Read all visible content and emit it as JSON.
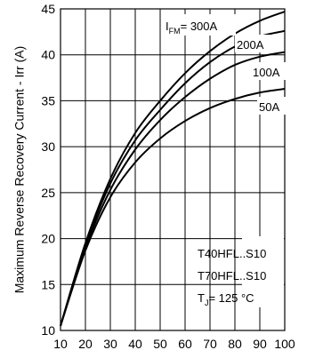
{
  "chart_data": {
    "type": "line",
    "title": "",
    "xlabel": "",
    "ylabel": "Maximum Reverse Recovery Current - Irr (A)",
    "xlim": [
      10,
      100
    ],
    "ylim": [
      10,
      45
    ],
    "grid": true,
    "x_ticks": [
      10,
      20,
      30,
      40,
      50,
      60,
      70,
      80,
      90,
      100
    ],
    "y_ticks": [
      10,
      15,
      20,
      25,
      30,
      35,
      40,
      45
    ],
    "x_tick_labels": [
      "10",
      "20",
      "30",
      "40",
      "50",
      "60",
      "70",
      "80",
      "90",
      "100"
    ],
    "y_tick_labels": [
      "10",
      "15",
      "20",
      "25",
      "30",
      "35",
      "40",
      "45"
    ],
    "series": [
      {
        "name": "I FM= 300A",
        "x": [
          10,
          20,
          30,
          40,
          50,
          60,
          70,
          80,
          90,
          100
        ],
        "y": [
          10.5,
          19.5,
          26.5,
          31.5,
          35.0,
          38.0,
          40.4,
          42.3,
          43.7,
          44.7
        ]
      },
      {
        "name": "200A",
        "x": [
          10,
          20,
          30,
          40,
          50,
          60,
          70,
          80,
          90,
          100
        ],
        "y": [
          10.5,
          19.3,
          26.0,
          30.7,
          34.0,
          36.9,
          39.2,
          40.9,
          42.0,
          42.6
        ]
      },
      {
        "name": "100A",
        "x": [
          10,
          20,
          30,
          40,
          50,
          60,
          70,
          80,
          90,
          100
        ],
        "y": [
          10.5,
          19.0,
          25.3,
          29.7,
          32.9,
          35.4,
          37.4,
          38.9,
          39.8,
          40.3
        ]
      },
      {
        "name": "50A",
        "x": [
          10,
          20,
          30,
          40,
          50,
          60,
          70,
          80,
          90,
          100
        ],
        "y": [
          10.5,
          18.7,
          24.5,
          28.3,
          30.9,
          32.8,
          34.2,
          35.2,
          35.9,
          36.3
        ]
      }
    ],
    "annotations": {
      "series_prefix": "I",
      "series_sub": "FM",
      "series_suffix": "= 300A",
      "label_200": "200A",
      "label_100": "100A",
      "label_50": "50A",
      "device1": "T40HFL..S10",
      "device2": "T70HFL..S10",
      "temp_prefix": "T",
      "temp_sub": "J",
      "temp_suffix": "= 125 °C"
    }
  }
}
